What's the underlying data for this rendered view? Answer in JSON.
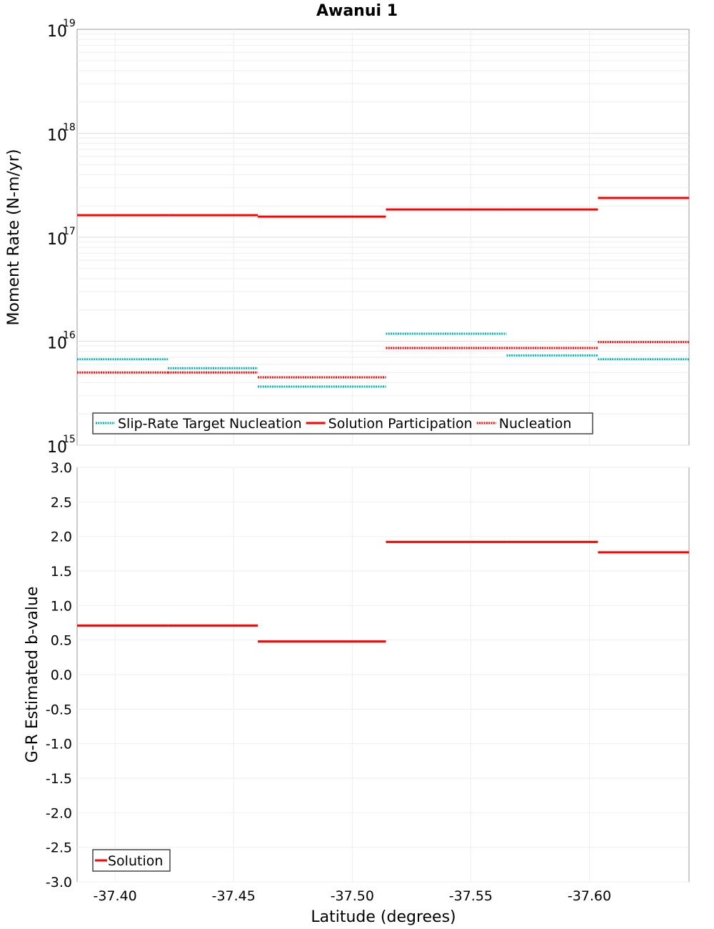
{
  "chart_data": [
    {
      "type": "line",
      "title": "Awanui 1",
      "ylabel": "Moment Rate (N-m/yr)",
      "xlabel": "Latitude (degrees)",
      "yscale": "log",
      "ylim": [
        1000000000000000.0,
        1e+19
      ],
      "xlim": [
        -37.384,
        -37.642
      ],
      "ytick_exponents": [
        "19",
        "18",
        "17",
        "16",
        "15"
      ],
      "ytick_base": "10",
      "grid": true,
      "legend_placement": "bottom-left",
      "section_boundaries": [
        -37.384,
        -37.4223,
        -37.4602,
        -37.5142,
        -37.5651,
        -37.6036,
        -37.642
      ],
      "series": [
        {
          "name": "Slip-Rate Target Nucleation",
          "color": "#00b4b4",
          "style": "dotted",
          "values": [
            6700000000000000.0,
            5500000000000000.0,
            3660000000000000.0,
            1.18e+16,
            7300000000000000.0,
            6700000000000000.0
          ]
        },
        {
          "name": "Solution Participation",
          "color": "#ff0000",
          "style": "solid",
          "values": [
            1.63e+17,
            1.63e+17,
            1.58e+17,
            1.85e+17,
            1.85e+17,
            2.39e+17
          ]
        },
        {
          "name": "Nucleation",
          "color": "#ff0000",
          "style": "dotted",
          "values": [
            5000000000000000.0,
            5000000000000000.0,
            4500000000000000.0,
            8600000000000000.0,
            8600000000000000.0,
            9800000000000000.0
          ]
        }
      ]
    },
    {
      "type": "line",
      "ylabel": "G-R Estimated b-value",
      "xlabel": "Latitude (degrees)",
      "ylim": [
        -3.0,
        3.0
      ],
      "xlim": [
        -37.384,
        -37.642
      ],
      "yticks": [
        "3.0",
        "2.5",
        "2.0",
        "1.5",
        "1.0",
        "0.5",
        "0.0",
        "-0.5",
        "-1.0",
        "-1.5",
        "-2.0",
        "-2.5",
        "-3.0"
      ],
      "xticks": [
        "-37.40",
        "-37.45",
        "-37.50",
        "-37.55",
        "-37.60"
      ],
      "grid": true,
      "legend_placement": "bottom-left",
      "section_boundaries": [
        -37.384,
        -37.4223,
        -37.4602,
        -37.5142,
        -37.5651,
        -37.6036,
        -37.642
      ],
      "series": [
        {
          "name": "Solution",
          "color": "#ff0000",
          "style": "solid",
          "values": [
            0.71,
            0.71,
            0.48,
            1.92,
            1.92,
            1.77
          ]
        }
      ]
    }
  ]
}
